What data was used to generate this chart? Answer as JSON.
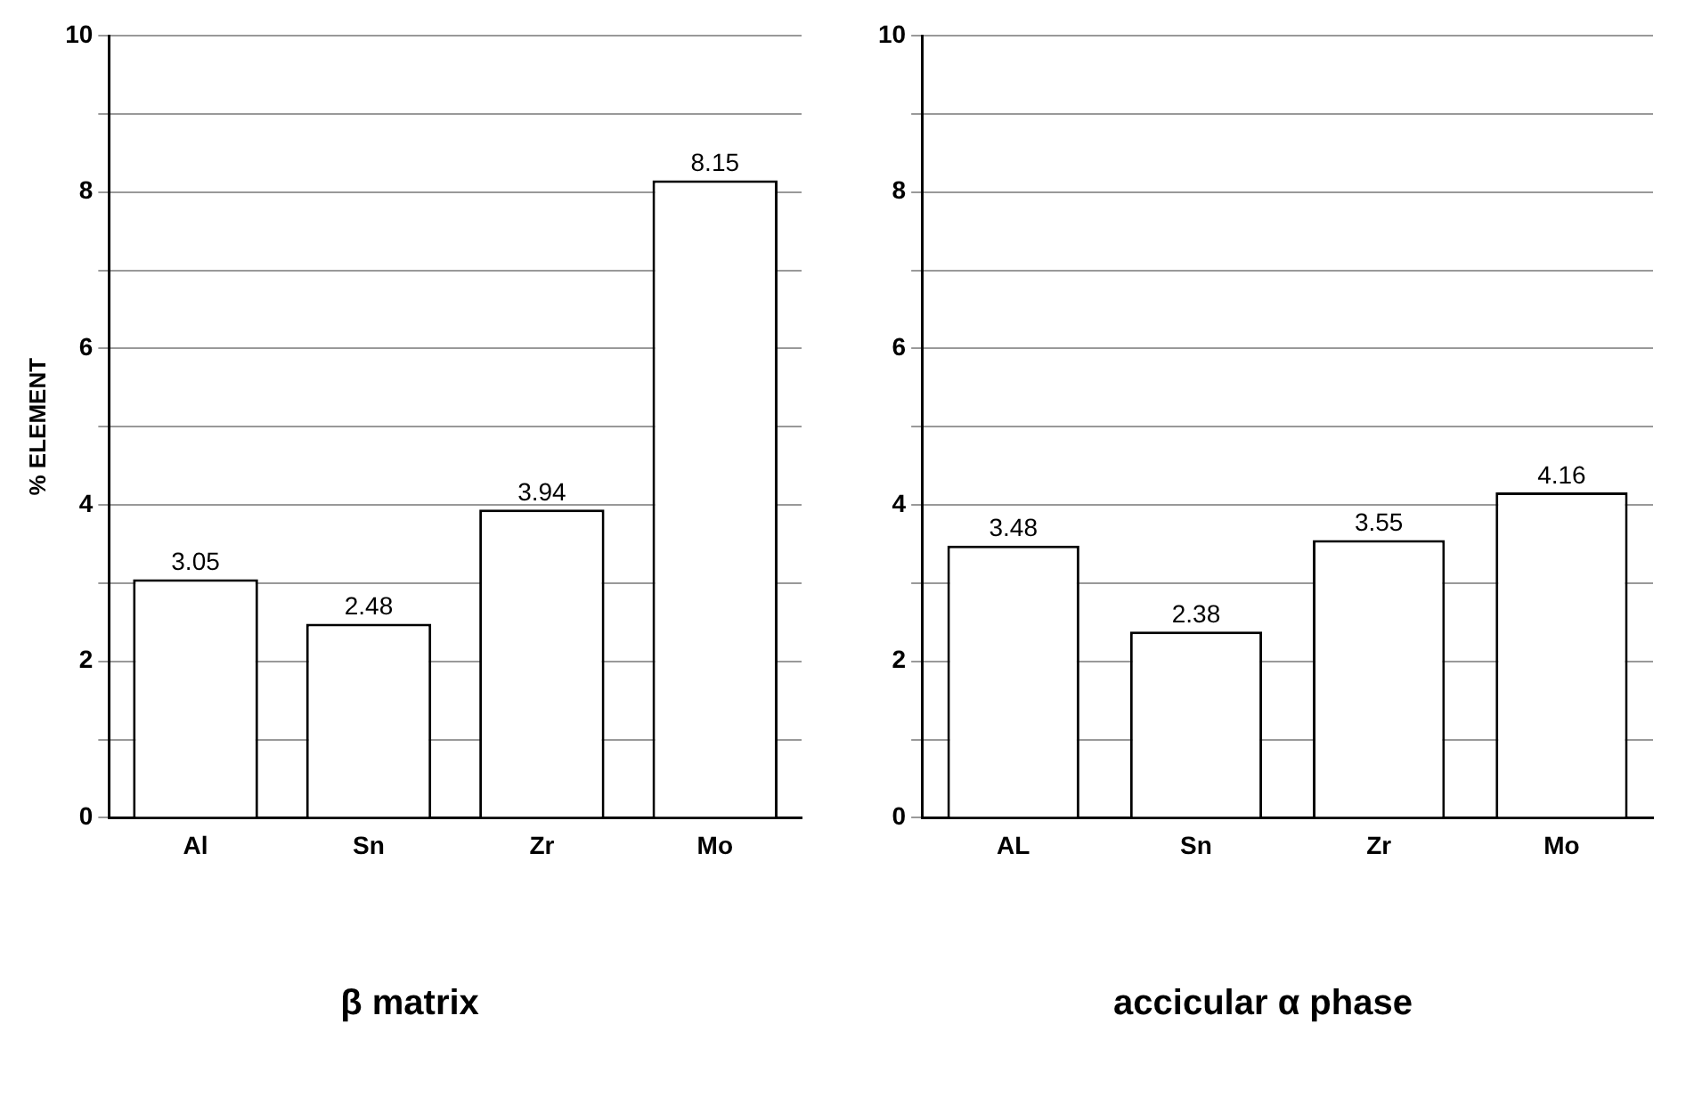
{
  "chart_data": [
    {
      "type": "bar",
      "title": "β matrix",
      "ylabel": "% ELEMENT",
      "categories": [
        "Al",
        "Sn",
        "Zr",
        "Mo"
      ],
      "series": [
        {
          "color": "#ffffff",
          "values": [
            3.05,
            2.48,
            3.94,
            8.15
          ]
        }
      ],
      "ylim": [
        0,
        10
      ],
      "yticks": [
        0,
        {
          "value": 1,
          "label": null
        },
        2,
        {
          "value": 3,
          "label": null
        },
        4,
        {
          "value": 5,
          "label": null
        },
        6,
        {
          "value": 7,
          "label": null
        },
        8,
        {
          "value": 9,
          "label": null
        },
        10
      ],
      "grid": "y",
      "data_labels": true,
      "legend": false
    },
    {
      "type": "bar",
      "title": "accicular α phase",
      "categories": [
        "AL",
        "Sn",
        "Zr",
        "Mo"
      ],
      "series": [
        {
          "color": "#ffffff",
          "values": [
            3.48,
            2.38,
            3.55,
            4.16
          ]
        }
      ],
      "ylim": [
        0,
        10
      ],
      "yticks": [
        0,
        {
          "value": 1,
          "label": null
        },
        2,
        {
          "value": 3,
          "label": null
        },
        4,
        {
          "value": 5,
          "label": null
        },
        6,
        {
          "value": 7,
          "label": null
        },
        8,
        {
          "value": 9,
          "label": null
        },
        10
      ],
      "grid": "y",
      "data_labels": true,
      "legend": false
    }
  ]
}
